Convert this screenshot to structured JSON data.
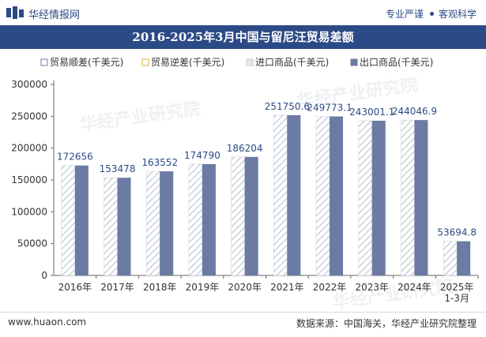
{
  "header": {
    "brand": "华经情报网",
    "slogan_left": "专业严谨",
    "slogan_right": "客观科学"
  },
  "watermarks": [
    "华经产业研究院",
    "华经产业研究院",
    "华经产业研究院"
  ],
  "footer": {
    "url": "www.huaon.com",
    "source": "数据来源：中国海关，华经产业研究院整理"
  },
  "colors": {
    "brand": "#2c4a86",
    "export_bar": "#6b7ba3",
    "import_bar_hatch": "#b7c3cf"
  },
  "chart_data": {
    "type": "bar",
    "title": "2016-2025年3月中国与留尼汪贸易差额",
    "categories": [
      "2016年",
      "2017年",
      "2018年",
      "2019年",
      "2020年",
      "2021年",
      "2022年",
      "2023年",
      "2024年",
      "2025年\n1-3月"
    ],
    "series": [
      {
        "name": "贸易顺差(千美元)",
        "values": [
          172656,
          153478,
          163552,
          174790,
          186204,
          251750.6,
          249773.1,
          243001.1,
          244046.9,
          53694.8
        ]
      },
      {
        "name": "贸易逆差(千美元)",
        "values": [
          0,
          0,
          0,
          0,
          0,
          0,
          0,
          0,
          0,
          0
        ]
      },
      {
        "name": "进口商品(千美元)",
        "values": [
          0,
          0,
          0,
          0,
          0,
          0,
          0,
          0,
          0,
          0
        ]
      },
      {
        "name": "出口商品(千美元)",
        "values": [
          172656,
          153478,
          163552,
          174790,
          186204,
          251750.6,
          249773.1,
          243001.1,
          244046.9,
          53694.8
        ]
      }
    ],
    "data_labels": [
      "172656",
      "153478",
      "163552",
      "174790",
      "186204",
      "251750.6",
      "249773.1",
      "243001.1",
      "244046.9",
      "53694.8"
    ],
    "yticks": [
      "0",
      "50000",
      "100000",
      "150000",
      "200000",
      "250000",
      "300000"
    ],
    "ylim": [
      0,
      300000
    ],
    "legend_position": "top"
  }
}
